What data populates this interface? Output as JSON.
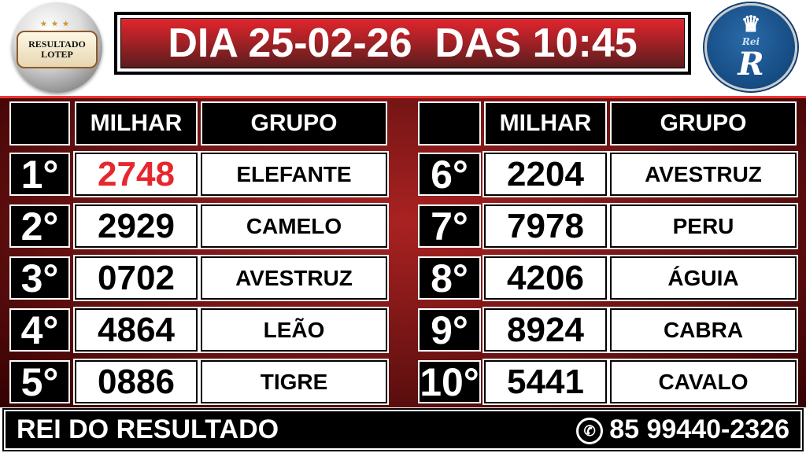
{
  "logo_left": {
    "line1": "RESULTADO",
    "line2": "LOTEP"
  },
  "logo_right": {
    "text": "Rei",
    "letter": "R"
  },
  "title": "DIA 25-02-26  DAS 10:45",
  "headers": {
    "milhar": "MILHAR",
    "grupo": "GRUPO"
  },
  "results": [
    {
      "rank": "1°",
      "milhar": "2748",
      "grupo": "ELEFANTE",
      "highlight_color": "#e8262d"
    },
    {
      "rank": "2°",
      "milhar": "2929",
      "grupo": "CAMELO"
    },
    {
      "rank": "3°",
      "milhar": "0702",
      "grupo": "AVESTRUZ"
    },
    {
      "rank": "4°",
      "milhar": "4864",
      "grupo": "LEÃO"
    },
    {
      "rank": "5°",
      "milhar": "0886",
      "grupo": "TIGRE"
    },
    {
      "rank": "6°",
      "milhar": "2204",
      "grupo": "AVESTRUZ"
    },
    {
      "rank": "7°",
      "milhar": "7978",
      "grupo": "PERU"
    },
    {
      "rank": "8°",
      "milhar": "4206",
      "grupo": "ÁGUIA"
    },
    {
      "rank": "9°",
      "milhar": "8924",
      "grupo": "CABRA"
    },
    {
      "rank": "10°",
      "milhar": "5441",
      "grupo": "CAVALO"
    }
  ],
  "footer": {
    "brand": "REI DO RESULTADO",
    "phone": "85 99440-2326",
    "phone_icon": "whatsapp-icon"
  }
}
